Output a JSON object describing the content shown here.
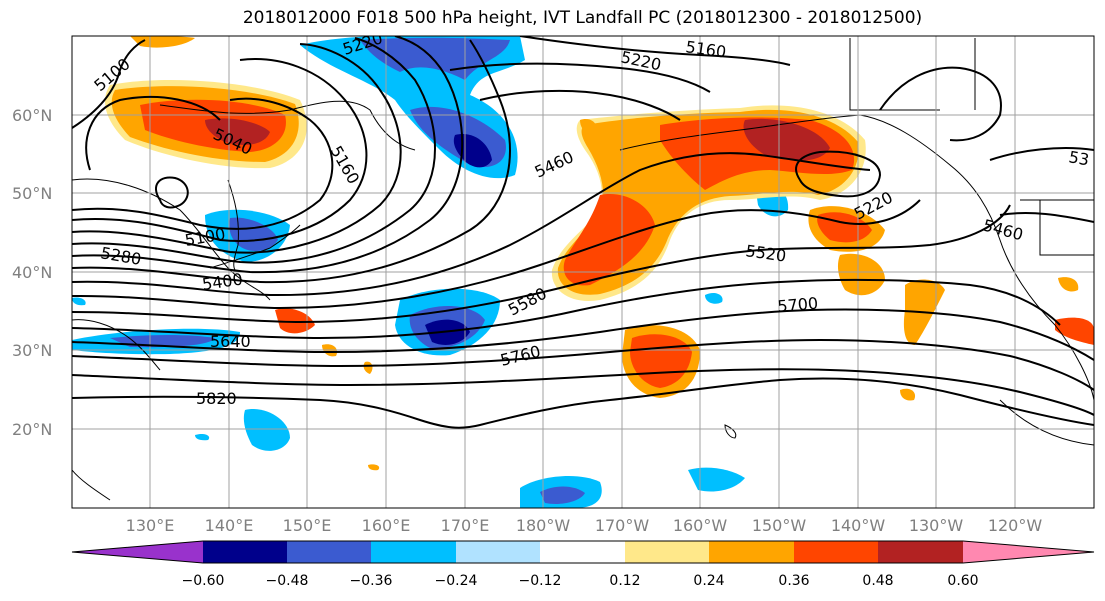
{
  "title": "2018012000 F018 500 hPa height, IVT Landfall PC (2018012300 - 2018012500)",
  "lat_labels": [
    "60°N",
    "50°N",
    "40°N",
    "30°N",
    "20°N"
  ],
  "lon_labels": [
    "130°E",
    "140°E",
    "150°E",
    "160°E",
    "170°E",
    "180°W",
    "170°W",
    "160°W",
    "150°W",
    "140°W",
    "130°W",
    "120°W"
  ],
  "contour_labels": [
    "5100",
    "5220",
    "5160",
    "5220",
    "5040",
    "5160",
    "5460",
    "5220",
    "53",
    "5460",
    "5100",
    "5280",
    "5400",
    "5520",
    "5580",
    "5700",
    "5640",
    "5760",
    "5820"
  ],
  "colorbar": {
    "ticks": [
      "−0.60",
      "−0.48",
      "−0.36",
      "−0.24",
      "−0.12",
      "0.12",
      "0.24",
      "0.36",
      "0.48",
      "0.60"
    ],
    "colors": [
      "#9932cc",
      "#00008b",
      "#3b5bd0",
      "#00bfff",
      "#b0e2ff",
      "#ffffff",
      "#ffe88a",
      "#ffa500",
      "#ff4500",
      "#b22222",
      "#ff88b0"
    ]
  }
}
